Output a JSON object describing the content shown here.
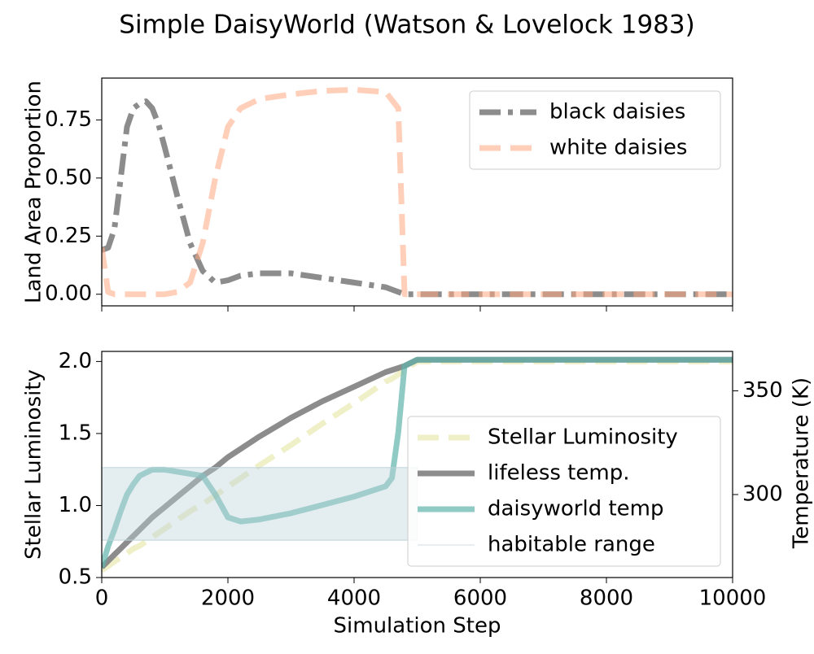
{
  "chart_data": [
    {
      "type": "line",
      "title": "Simple DaisyWorld (Watson & Lovelock 1983)",
      "ylabel": "Land Area Proportion",
      "x": [
        0,
        100,
        200,
        300,
        400,
        500,
        600,
        700,
        800,
        900,
        1000,
        1200,
        1400,
        1600,
        1800,
        2000,
        2200,
        2500,
        3000,
        3500,
        4000,
        4500,
        4700,
        4800,
        5000,
        6000,
        8000,
        10000
      ],
      "xlim": [
        0,
        10000
      ],
      "ylim": [
        -0.05,
        0.93
      ],
      "yticks": [
        {
          "value": 0,
          "label": "0.00"
        },
        0.25,
        {
          "value": 0.5,
          "label": "0.50"
        },
        0.75
      ],
      "legend": "upper right",
      "series": [
        {
          "name": "black daisies",
          "color": "#808080",
          "dash": "dashdot",
          "values": [
            0.19,
            0.2,
            0.28,
            0.5,
            0.72,
            0.8,
            0.82,
            0.83,
            0.8,
            0.73,
            0.63,
            0.42,
            0.22,
            0.1,
            0.05,
            0.06,
            0.08,
            0.09,
            0.09,
            0.07,
            0.05,
            0.03,
            0.01,
            0,
            0,
            0,
            0,
            0
          ]
        },
        {
          "name": "white daisies",
          "color": "#ffa880",
          "dash": "dashed",
          "values": [
            0.2,
            0.01,
            0,
            0,
            0,
            0,
            0,
            0,
            0,
            0,
            0,
            0.01,
            0.05,
            0.22,
            0.5,
            0.72,
            0.8,
            0.84,
            0.86,
            0.875,
            0.88,
            0.87,
            0.8,
            0,
            0,
            0,
            0,
            0
          ]
        }
      ]
    },
    {
      "type": "line",
      "xlabel": "Simulation Step",
      "ylabel": "Stellar Luminosity",
      "y2label": "Temperature (K)",
      "x": [
        0,
        100,
        200,
        300,
        400,
        500,
        600,
        800,
        1000,
        1200,
        1400,
        1600,
        1800,
        2000,
        2200,
        2500,
        3000,
        3500,
        4000,
        4500,
        4600,
        4700,
        4800,
        5000,
        6000,
        8000,
        10000
      ],
      "xlim": [
        0,
        10000
      ],
      "ylim": [
        0.5,
        2.07
      ],
      "y2lim": [
        260,
        369
      ],
      "xticks": [
        0,
        2000,
        4000,
        6000,
        8000,
        10000
      ],
      "yticks": [
        0.5,
        {
          "value": 1,
          "label": "1.0"
        },
        1.5,
        {
          "value": 2,
          "label": "2.0"
        }
      ],
      "y2ticks": [
        300,
        350
      ],
      "legend": "lower right",
      "series": [
        {
          "name": "Stellar Luminosity",
          "color": "#e8e8b0",
          "dash": "dashed",
          "values": [
            0.55,
            0.58,
            0.61,
            0.64,
            0.67,
            0.7,
            0.72,
            0.78,
            0.84,
            0.9,
            0.96,
            1.01,
            1.07,
            1.13,
            1.19,
            1.28,
            1.42,
            1.57,
            1.71,
            1.86,
            1.88,
            1.91,
            1.94,
            2.0,
            2.0,
            2.0,
            2.0
          ]
        },
        {
          "name": "lifeless temp.",
          "color": "#808080",
          "axis": "y2",
          "values": [
            265,
            268,
            271,
            274,
            277,
            280,
            283,
            289,
            294,
            299,
            304,
            309,
            313,
            318,
            322,
            328,
            337,
            345,
            352,
            359,
            360,
            361,
            362,
            365,
            365,
            365,
            365
          ]
        },
        {
          "name": "daisyworld temp",
          "color": "#5fb3ad",
          "axis": "y2",
          "values": [
            265,
            275,
            283,
            292,
            300,
            305,
            309,
            312,
            312,
            311,
            310,
            309,
            300,
            289,
            287,
            288,
            291,
            295,
            299,
            304,
            308,
            330,
            362,
            365,
            365,
            365,
            365
          ]
        },
        {
          "name": "habitable range",
          "color": "#bcd3d9",
          "axis": "y2",
          "x_range": [
            0,
            5000
          ],
          "range": [
            278,
            313
          ]
        }
      ]
    }
  ]
}
